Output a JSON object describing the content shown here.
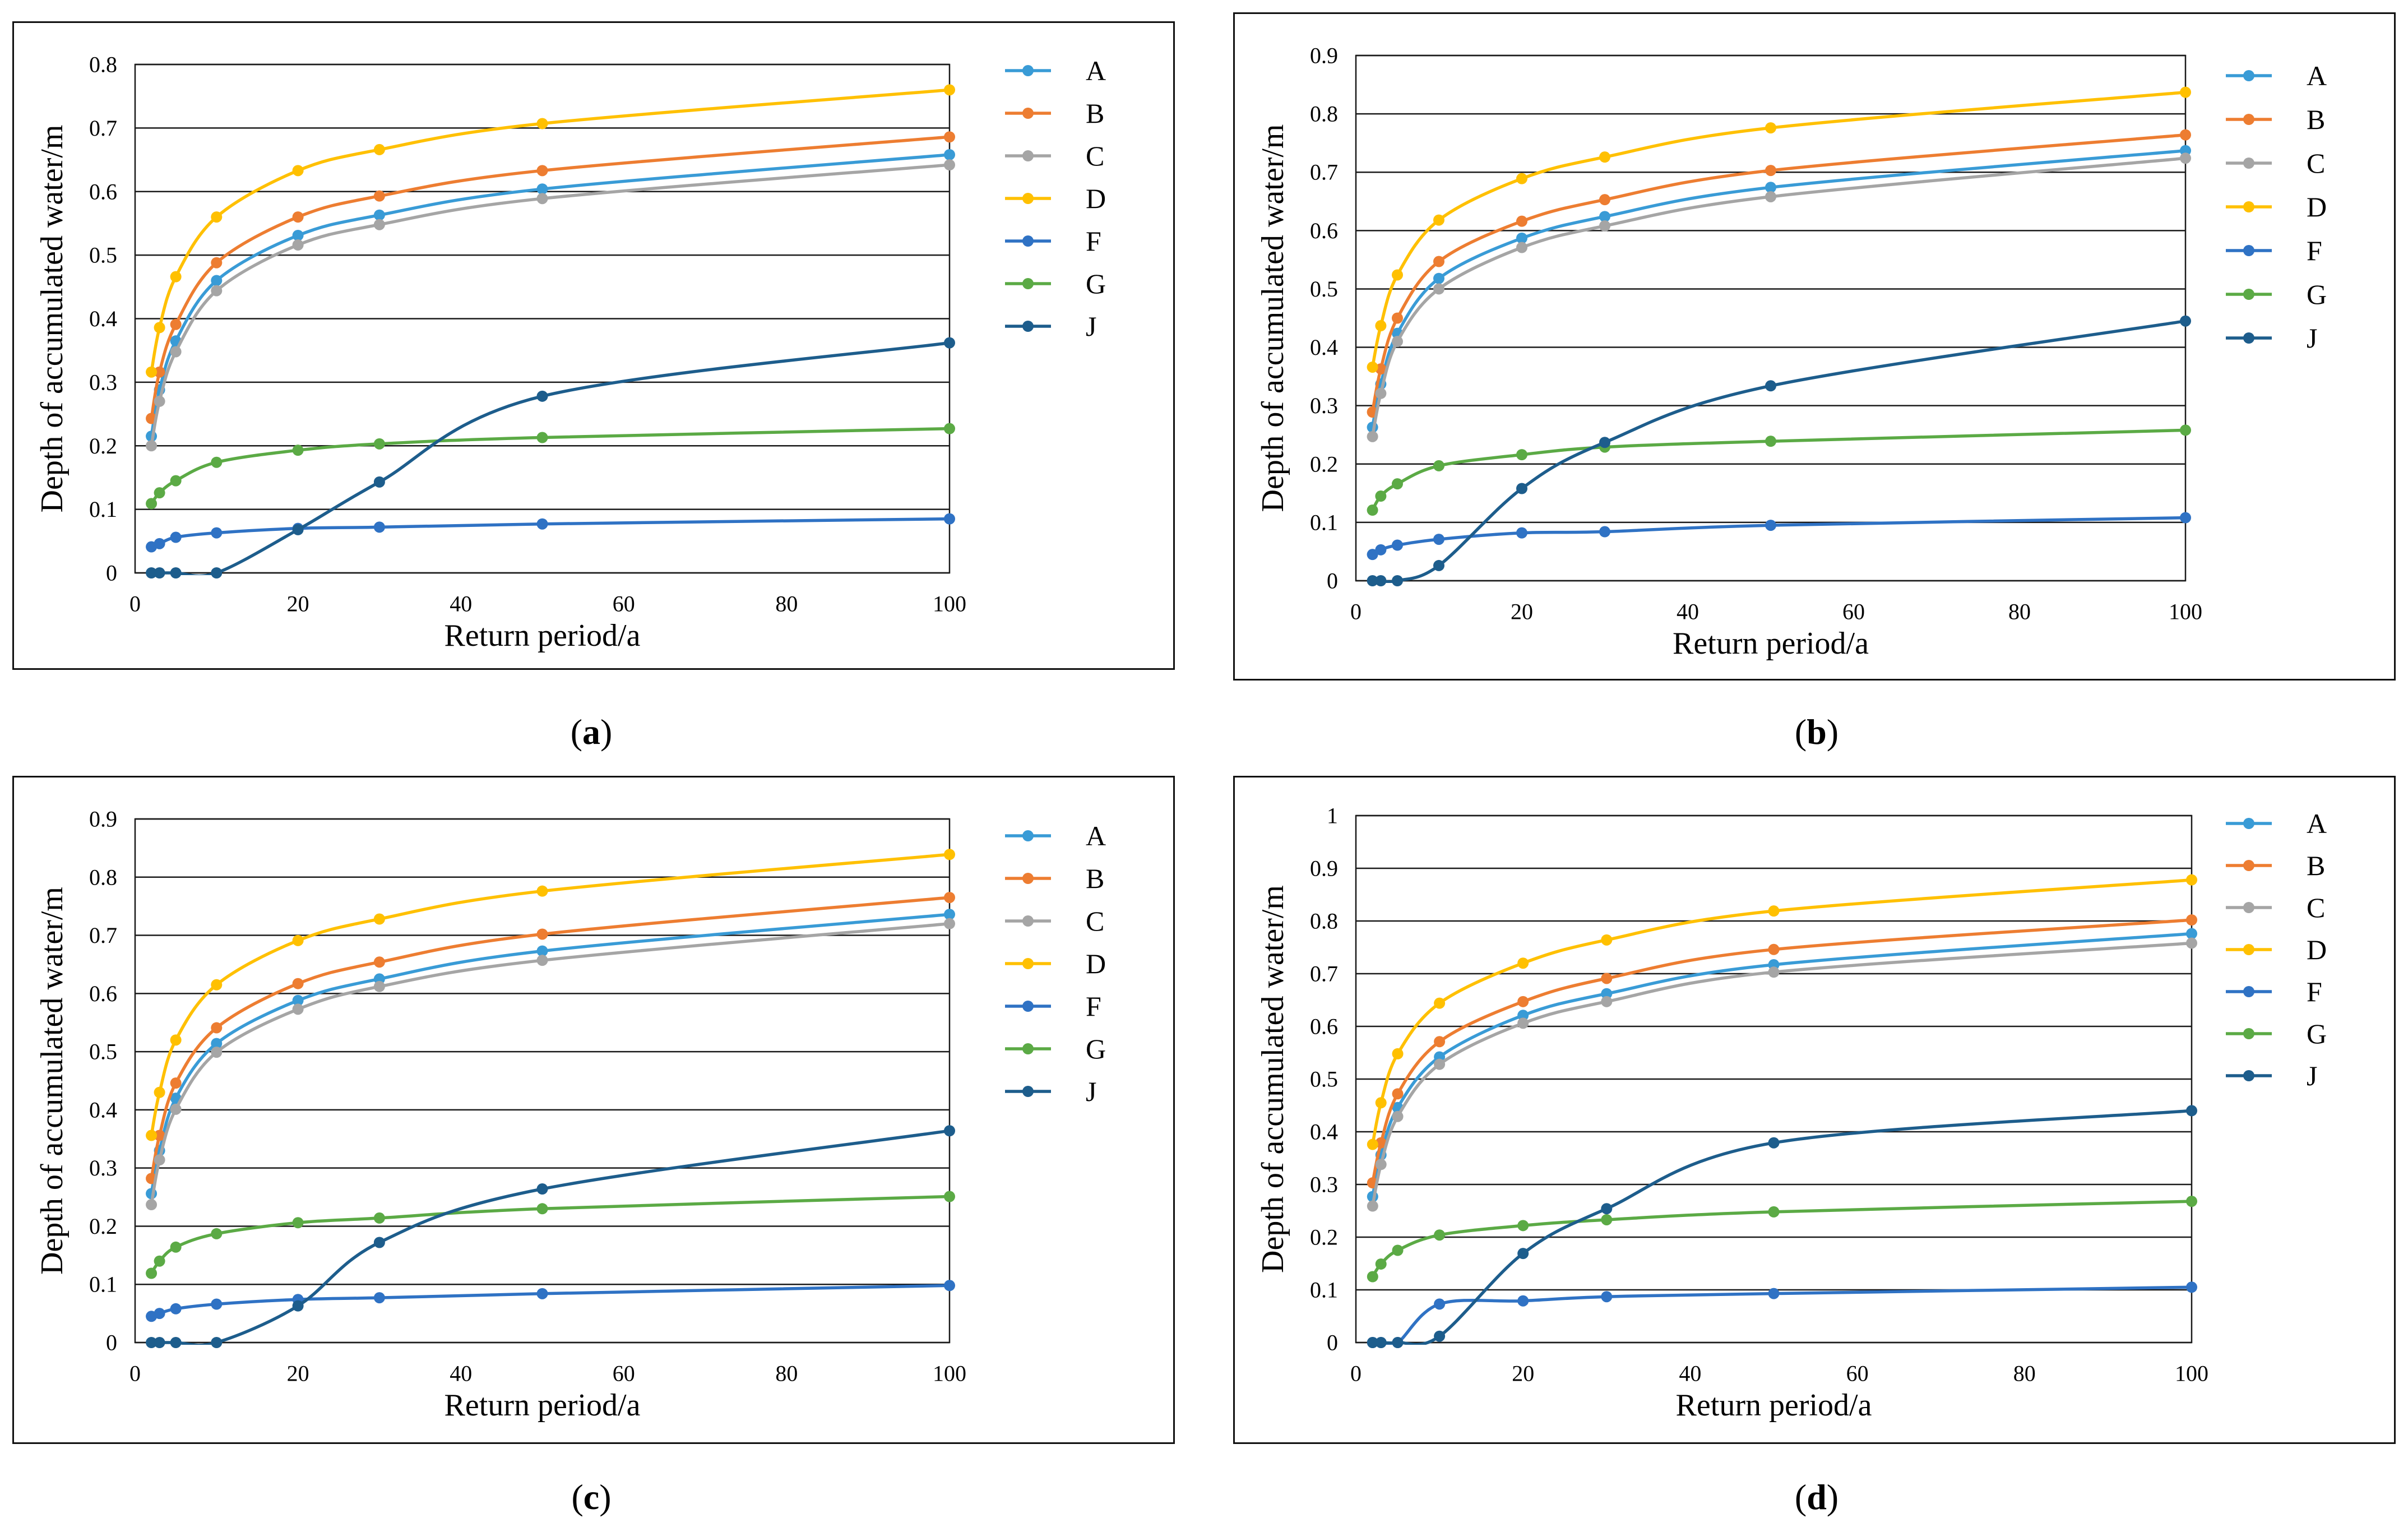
{
  "chart_data": [
    {
      "type": "line",
      "caption": {
        "open": "(",
        "letter": "a",
        "close": ")"
      },
      "xlabel": "Return period/a",
      "ylabel": "Depth of accumulated water/m",
      "xlim": [
        0,
        100
      ],
      "ylim": [
        0,
        0.8
      ],
      "x_ticks": [
        0,
        20,
        40,
        60,
        80,
        100
      ],
      "y_ticks": [
        0,
        0.1,
        0.2,
        0.3,
        0.4,
        0.5,
        0.6,
        0.7,
        0.8
      ],
      "grid": true,
      "legend": "right",
      "x": [
        2,
        3,
        5,
        10,
        20,
        30,
        50,
        100
      ],
      "series": [
        {
          "name": "A",
          "color": "#399BD6",
          "values": [
            0.215,
            0.288,
            0.365,
            0.46,
            0.531,
            0.563,
            0.604,
            0.658
          ]
        },
        {
          "name": "B",
          "color": "#ED7D31",
          "values": [
            0.243,
            0.316,
            0.391,
            0.488,
            0.56,
            0.593,
            0.633,
            0.686
          ]
        },
        {
          "name": "C",
          "color": "#A5A5A5",
          "values": [
            0.2,
            0.27,
            0.348,
            0.444,
            0.516,
            0.548,
            0.589,
            0.642
          ]
        },
        {
          "name": "D",
          "color": "#FFC000",
          "values": [
            0.316,
            0.386,
            0.466,
            0.56,
            0.633,
            0.666,
            0.707,
            0.76
          ]
        },
        {
          "name": "F",
          "color": "#2F72C4",
          "values": [
            0.041,
            0.046,
            0.056,
            0.063,
            0.07,
            0.072,
            0.077,
            0.085
          ]
        },
        {
          "name": "G",
          "color": "#5BAA45",
          "values": [
            0.109,
            0.126,
            0.145,
            0.174,
            0.193,
            0.203,
            0.213,
            0.227
          ]
        },
        {
          "name": "J",
          "color": "#1D5D8C",
          "values": [
            0,
            0,
            0,
            0,
            0.068,
            0.143,
            0.278,
            0.362
          ]
        }
      ]
    },
    {
      "type": "line",
      "caption": {
        "open": "(",
        "letter": "b",
        "close": ")"
      },
      "xlabel": "Return period/a",
      "ylabel": "Depth of accumulated water/m",
      "xlim": [
        0,
        100
      ],
      "ylim": [
        0,
        0.9
      ],
      "x_ticks": [
        0,
        20,
        40,
        60,
        80,
        100
      ],
      "y_ticks": [
        0,
        0.1,
        0.2,
        0.3,
        0.4,
        0.5,
        0.6,
        0.7,
        0.8,
        0.9
      ],
      "grid": true,
      "legend": "right",
      "x": [
        2,
        3,
        5,
        10,
        20,
        30,
        50,
        100
      ],
      "series": [
        {
          "name": "A",
          "color": "#399BD6",
          "values": [
            0.263,
            0.337,
            0.424,
            0.518,
            0.587,
            0.624,
            0.674,
            0.737
          ]
        },
        {
          "name": "B",
          "color": "#ED7D31",
          "values": [
            0.289,
            0.363,
            0.45,
            0.547,
            0.616,
            0.653,
            0.703,
            0.764
          ]
        },
        {
          "name": "C",
          "color": "#A5A5A5",
          "values": [
            0.247,
            0.321,
            0.41,
            0.5,
            0.571,
            0.608,
            0.658,
            0.724
          ]
        },
        {
          "name": "D",
          "color": "#FFC000",
          "values": [
            0.366,
            0.437,
            0.524,
            0.618,
            0.689,
            0.726,
            0.776,
            0.837
          ]
        },
        {
          "name": "F",
          "color": "#2F72C4",
          "values": [
            0.045,
            0.053,
            0.061,
            0.071,
            0.082,
            0.084,
            0.095,
            0.108
          ]
        },
        {
          "name": "G",
          "color": "#5BAA45",
          "values": [
            0.121,
            0.145,
            0.166,
            0.197,
            0.216,
            0.229,
            0.239,
            0.258
          ]
        },
        {
          "name": "J",
          "color": "#1D5D8C",
          "values": [
            0,
            0,
            0,
            0.026,
            0.158,
            0.237,
            0.334,
            0.445
          ]
        }
      ]
    },
    {
      "type": "line",
      "caption": {
        "open": "(",
        "letter": "c",
        "close": ")"
      },
      "xlabel": "Return period/a",
      "ylabel": "Depth of accumulated water/m",
      "xlim": [
        0,
        100
      ],
      "ylim": [
        0,
        0.9
      ],
      "x_ticks": [
        0,
        20,
        40,
        60,
        80,
        100
      ],
      "y_ticks": [
        0,
        0.1,
        0.2,
        0.3,
        0.4,
        0.5,
        0.6,
        0.7,
        0.8,
        0.9
      ],
      "grid": true,
      "legend": "right",
      "x": [
        2,
        3,
        5,
        10,
        20,
        30,
        50,
        100
      ],
      "series": [
        {
          "name": "A",
          "color": "#399BD6",
          "values": [
            0.256,
            0.33,
            0.42,
            0.514,
            0.588,
            0.625,
            0.673,
            0.736
          ]
        },
        {
          "name": "B",
          "color": "#ED7D31",
          "values": [
            0.282,
            0.356,
            0.446,
            0.541,
            0.617,
            0.654,
            0.702,
            0.765
          ]
        },
        {
          "name": "C",
          "color": "#A5A5A5",
          "values": [
            0.237,
            0.314,
            0.401,
            0.499,
            0.573,
            0.612,
            0.657,
            0.72
          ]
        },
        {
          "name": "D",
          "color": "#FFC000",
          "values": [
            0.356,
            0.43,
            0.52,
            0.615,
            0.691,
            0.728,
            0.776,
            0.839
          ]
        },
        {
          "name": "F",
          "color": "#2F72C4",
          "values": [
            0.045,
            0.05,
            0.058,
            0.066,
            0.074,
            0.077,
            0.084,
            0.098
          ]
        },
        {
          "name": "G",
          "color": "#5BAA45",
          "values": [
            0.119,
            0.14,
            0.164,
            0.187,
            0.206,
            0.214,
            0.23,
            0.251
          ]
        },
        {
          "name": "J",
          "color": "#1D5D8C",
          "values": [
            0,
            0,
            0,
            0,
            0.063,
            0.172,
            0.264,
            0.364
          ]
        }
      ]
    },
    {
      "type": "line",
      "caption": {
        "open": "(",
        "letter": "d",
        "close": ")"
      },
      "xlabel": "Return period/a",
      "ylabel": "Depth of accumulated water/m",
      "xlim": [
        0,
        100
      ],
      "ylim": [
        0,
        1
      ],
      "x_ticks": [
        0,
        20,
        40,
        60,
        80,
        100
      ],
      "y_ticks": [
        0,
        0.1,
        0.2,
        0.3,
        0.4,
        0.5,
        0.6,
        0.7,
        0.8,
        0.9,
        1
      ],
      "grid": true,
      "legend": "right",
      "x": [
        2,
        3,
        5,
        10,
        20,
        30,
        50,
        100
      ],
      "series": [
        {
          "name": "A",
          "color": "#399BD6",
          "values": [
            0.277,
            0.356,
            0.446,
            0.542,
            0.621,
            0.662,
            0.717,
            0.776
          ]
        },
        {
          "name": "B",
          "color": "#ED7D31",
          "values": [
            0.303,
            0.379,
            0.472,
            0.571,
            0.647,
            0.691,
            0.746,
            0.802
          ]
        },
        {
          "name": "C",
          "color": "#A5A5A5",
          "values": [
            0.259,
            0.338,
            0.429,
            0.528,
            0.606,
            0.647,
            0.703,
            0.758
          ]
        },
        {
          "name": "D",
          "color": "#FFC000",
          "values": [
            0.376,
            0.455,
            0.548,
            0.644,
            0.72,
            0.764,
            0.819,
            0.878
          ]
        },
        {
          "name": "F",
          "color": "#2F72C4",
          "values": [
            0,
            0,
            0,
            0.073,
            0.079,
            0.087,
            0.093,
            0.105
          ]
        },
        {
          "name": "G",
          "color": "#5BAA45",
          "values": [
            0.125,
            0.149,
            0.175,
            0.204,
            0.222,
            0.233,
            0.248,
            0.268
          ]
        },
        {
          "name": "J",
          "color": "#1D5D8C",
          "values": [
            0,
            0,
            0,
            0.012,
            0.169,
            0.254,
            0.379,
            0.44
          ]
        }
      ]
    }
  ]
}
